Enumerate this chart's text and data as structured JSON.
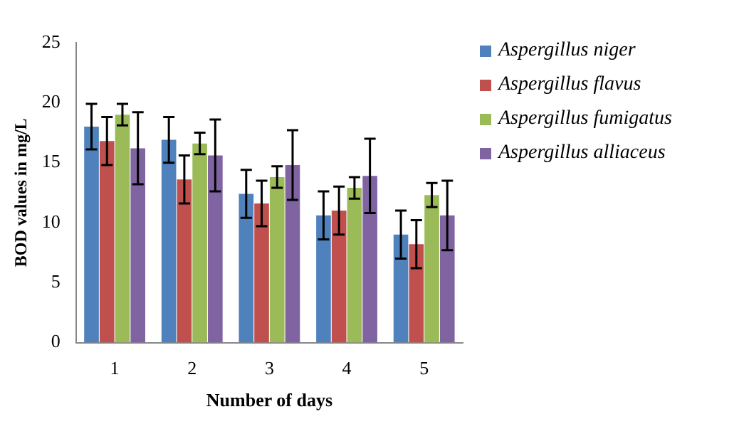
{
  "chart_data": {
    "type": "bar",
    "xlabel": "Number of days",
    "ylabel": "BOD values in mg/L",
    "categories": [
      "1",
      "2",
      "3",
      "4",
      "5"
    ],
    "series": [
      {
        "name": "Aspergillus niger",
        "color": "#4f81bd",
        "values": [
          18,
          16.9,
          12.4,
          10.6,
          9.0
        ],
        "errors": [
          1.9,
          1.9,
          2,
          2,
          2
        ]
      },
      {
        "name": "Aspergillus flavus",
        "color": "#c0504d",
        "values": [
          16.8,
          13.6,
          11.6,
          11.0,
          8.2
        ],
        "errors": [
          2,
          2,
          1.9,
          2,
          2
        ]
      },
      {
        "name": "Aspergillus fumigatus",
        "color": "#9bbb59",
        "values": [
          19,
          16.6,
          13.8,
          12.9,
          12.3
        ],
        "errors": [
          0.9,
          0.9,
          0.9,
          0.9,
          1
        ]
      },
      {
        "name": "Aspergillus alliaceus",
        "color": "#8064a2",
        "values": [
          16.2,
          15.6,
          14.8,
          13.9,
          10.6
        ],
        "errors": [
          3,
          3,
          2.9,
          3.1,
          2.9
        ]
      }
    ],
    "ylim": [
      0,
      25
    ],
    "yticks": [
      0,
      5,
      10,
      15,
      20,
      25
    ],
    "grid": false,
    "legend": "right"
  }
}
